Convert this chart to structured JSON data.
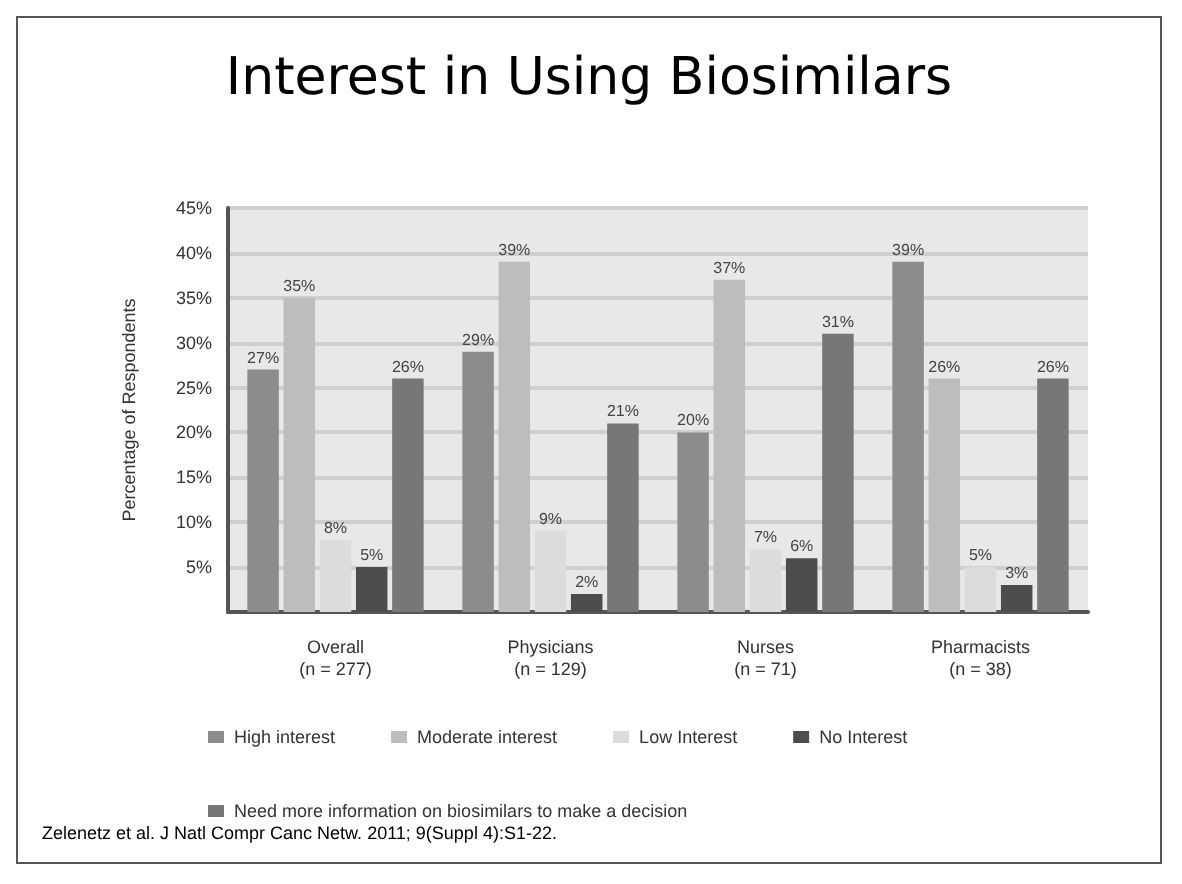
{
  "chart_data": {
    "type": "bar",
    "title": "Interest in Using Biosimilars",
    "ylabel": "Percentage of Respondents",
    "categories": [
      "Overall\n(n = 277)",
      "Physicians\n(n = 129)",
      "Nurses\n(n = 71)",
      "Pharmacists\n(n = 38)"
    ],
    "series": [
      {
        "name": "High interest",
        "color": "#8c8c8c",
        "values": [
          27,
          29,
          20,
          39
        ],
        "value_labels": [
          "27%",
          "29%",
          "20%",
          "39%"
        ]
      },
      {
        "name": "Moderate interest",
        "color": "#bdbdbd",
        "values": [
          35,
          39,
          37,
          26
        ],
        "value_labels": [
          "35%",
          "39%",
          "37%",
          "26%"
        ]
      },
      {
        "name": "Low Interest",
        "color": "#dcdcdc",
        "values": [
          8,
          9,
          7,
          5
        ],
        "value_labels": [
          "8%",
          "9%",
          "7%",
          "5%"
        ]
      },
      {
        "name": "No Interest",
        "color": "#4d4d4d",
        "values": [
          5,
          2,
          6,
          3
        ],
        "value_labels": [
          "5%",
          "2%",
          "6%",
          "3%"
        ]
      },
      {
        "name": "Need more information on biosimilars to make a decision",
        "color": "#777777",
        "values": [
          26,
          21,
          31,
          26
        ],
        "value_labels": [
          "26%",
          "21%",
          "31%",
          "26%"
        ]
      }
    ],
    "ylim": [
      0,
      45
    ],
    "yticks": [
      {
        "value": 5,
        "label": "5%"
      },
      {
        "value": 10,
        "label": "10%"
      },
      {
        "value": 15,
        "label": "15%"
      },
      {
        "value": 20,
        "label": "20%"
      },
      {
        "value": 25,
        "label": "25%"
      },
      {
        "value": 30,
        "label": "30%"
      },
      {
        "value": 35,
        "label": "35%"
      },
      {
        "value": 40,
        "label": "40%"
      },
      {
        "value": 45,
        "label": "45%"
      }
    ],
    "grid": "y",
    "legend": "bottom",
    "annotations": [
      "Zelenetz et al. J Natl Compr Canc Netw. 2011; 9(Suppl 4):S1-22."
    ]
  }
}
